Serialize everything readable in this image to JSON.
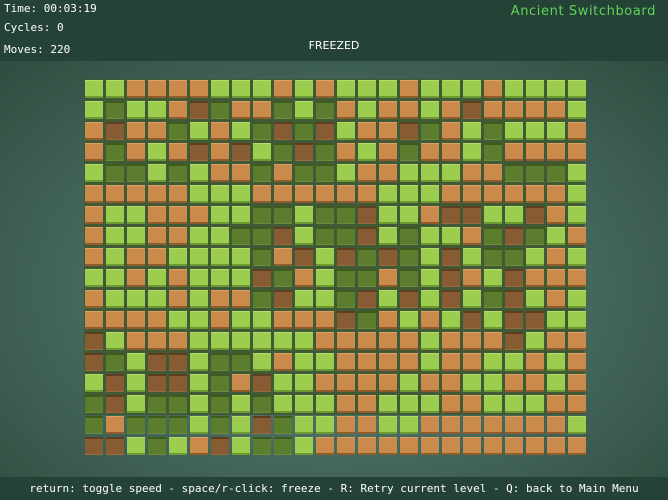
{
  "hud": {
    "time_label": "Time: 00:03:19",
    "cycles_label": "Cycles: 0",
    "moves_label": "Moves: 220",
    "status": "FREEZED",
    "title": "Ancient Switchboard"
  },
  "footer": {
    "help": "return: toggle speed - space/r-click: freeze - R: Retry current level - Q: back to Main Menu"
  },
  "colors": {
    "green_on": "#9ccd4e",
    "orange_on": "#c98a4c",
    "green_pressed": "#5c7c2e",
    "orange_pressed": "#875c33",
    "title": "#5fd35a"
  },
  "board": {
    "legend": "g=green raised, o=orange raised, G=green pressed, O=orange pressed",
    "rows": [
      "ggoooogggogogggogggogggg",
      "gGggoOGooGgGogoogoOoooog",
      "oOooGgogGOGOgooOGogGgggo",
      "oGogoOoOgGOGogoGoogGoooo",
      "gGGgGgooGoGGgoogggooGGGg",
      "ooooogggoooooogggoooooog",
      "oggoooggGGgGGOggoOOggOog",
      "oggooggGGOgGGOgGggoGOGgo",
      "ogooggggGoOgOGOGgOgGGgog",
      "ggogogggOGogGGoGgOogOooo",
      "ogggogooGOggGOgOgOgGOgog",
      "ooooggoggoooOGogogOgOOgg",
      "OgoooggggggooooogoooOgoo",
      "OGgOOgGGgoggoooogooggogo",
      "gOgOOgGoOggoooogooggoogo",
      "GOgGGgGgGgggoogggoogggoo",
      "GoGGGgGgOGggooggooooooog",
      "OOgGgoOgGGgooooooooooooo"
    ]
  }
}
